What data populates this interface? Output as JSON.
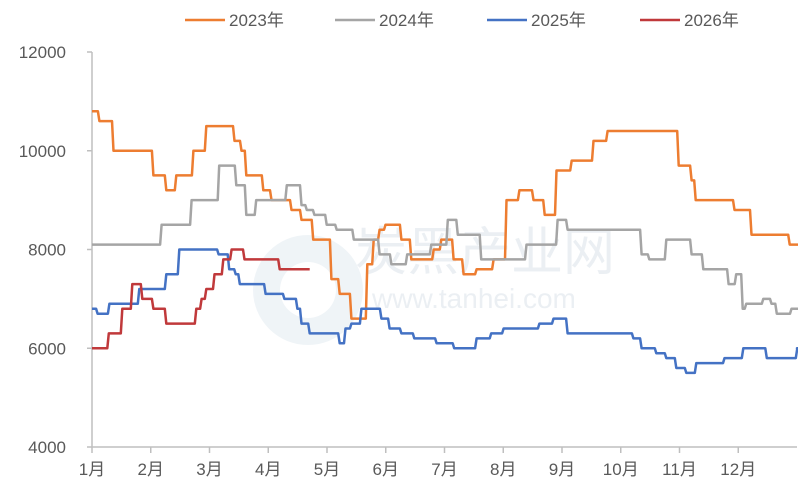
{
  "chart_data": {
    "type": "line",
    "title": "",
    "xlabel": "",
    "ylabel": "",
    "ylim": [
      4000,
      12000
    ],
    "yticks": [
      "4000",
      "6000",
      "8000",
      "10000",
      "12000"
    ],
    "xlim": [
      0,
      12
    ],
    "categories": [
      "1月",
      "2月",
      "3月",
      "4月",
      "5月",
      "6月",
      "7月",
      "8月",
      "9月",
      "10月",
      "11月",
      "12月"
    ],
    "legend_position": "top",
    "grid": false,
    "step": true,
    "x_unit": "months since Jan 1 (value holds until next point)",
    "series": [
      {
        "name": "2023年",
        "color": "#ED7D31",
        "points": [
          [
            0,
            10800
          ],
          [
            0.1,
            10600
          ],
          [
            0.34,
            10000
          ],
          [
            1.02,
            9500
          ],
          [
            1.24,
            9200
          ],
          [
            1.41,
            9500
          ],
          [
            1.7,
            10000
          ],
          [
            1.92,
            10500
          ],
          [
            2.4,
            10200
          ],
          [
            2.52,
            10000
          ],
          [
            2.6,
            9500
          ],
          [
            2.89,
            9200
          ],
          [
            3.03,
            9000
          ],
          [
            3.37,
            8800
          ],
          [
            3.54,
            8600
          ],
          [
            3.74,
            8200
          ],
          [
            4.05,
            7400
          ],
          [
            4.19,
            7100
          ],
          [
            4.39,
            6600
          ],
          [
            4.66,
            7700
          ],
          [
            4.77,
            8200
          ],
          [
            4.87,
            8400
          ],
          [
            4.97,
            8500
          ],
          [
            5.24,
            8200
          ],
          [
            5.41,
            7800
          ],
          [
            5.79,
            8000
          ],
          [
            5.92,
            8200
          ],
          [
            6.13,
            7800
          ],
          [
            6.3,
            7500
          ],
          [
            6.52,
            7600
          ],
          [
            6.81,
            7800
          ],
          [
            7.03,
            9000
          ],
          [
            7.25,
            9200
          ],
          [
            7.49,
            9000
          ],
          [
            7.68,
            8700
          ],
          [
            7.88,
            9600
          ],
          [
            8.14,
            9800
          ],
          [
            8.51,
            10200
          ],
          [
            8.75,
            10400
          ],
          [
            9.96,
            9700
          ],
          [
            10.18,
            9400
          ],
          [
            10.25,
            9000
          ],
          [
            10.91,
            8800
          ],
          [
            11.2,
            8300
          ],
          [
            11.85,
            8100
          ],
          [
            12,
            8100
          ]
        ]
      },
      {
        "name": "2024年",
        "color": "#A5A5A5",
        "points": [
          [
            0,
            8100
          ],
          [
            1.16,
            8500
          ],
          [
            1.67,
            9000
          ],
          [
            2.14,
            9700
          ],
          [
            2.43,
            9300
          ],
          [
            2.6,
            8700
          ],
          [
            2.77,
            9000
          ],
          [
            3.29,
            9300
          ],
          [
            3.54,
            8900
          ],
          [
            3.63,
            8800
          ],
          [
            3.76,
            8700
          ],
          [
            3.97,
            8500
          ],
          [
            4.14,
            8400
          ],
          [
            4.43,
            8200
          ],
          [
            4.87,
            7900
          ],
          [
            5.07,
            7700
          ],
          [
            5.34,
            7900
          ],
          [
            5.75,
            8100
          ],
          [
            6.03,
            8600
          ],
          [
            6.2,
            8300
          ],
          [
            6.6,
            7800
          ],
          [
            7.37,
            8100
          ],
          [
            7.9,
            8600
          ],
          [
            8.07,
            8400
          ],
          [
            9.33,
            7900
          ],
          [
            9.46,
            7800
          ],
          [
            9.75,
            8200
          ],
          [
            10.18,
            7900
          ],
          [
            10.38,
            7600
          ],
          [
            10.81,
            7300
          ],
          [
            10.94,
            7500
          ],
          [
            11.05,
            6800
          ],
          [
            11.11,
            6900
          ],
          [
            11.4,
            7000
          ],
          [
            11.54,
            6900
          ],
          [
            11.63,
            6700
          ],
          [
            11.88,
            6800
          ],
          [
            12,
            6800
          ]
        ]
      },
      {
        "name": "2025年",
        "color": "#4472C4",
        "points": [
          [
            0,
            6800
          ],
          [
            0.07,
            6700
          ],
          [
            0.27,
            6900
          ],
          [
            0.78,
            7200
          ],
          [
            1.24,
            7500
          ],
          [
            1.46,
            8000
          ],
          [
            2.13,
            7900
          ],
          [
            2.31,
            7600
          ],
          [
            2.42,
            7500
          ],
          [
            2.49,
            7300
          ],
          [
            2.93,
            7100
          ],
          [
            3.25,
            7000
          ],
          [
            3.47,
            6800
          ],
          [
            3.54,
            6500
          ],
          [
            3.68,
            6300
          ],
          [
            4.19,
            6100
          ],
          [
            4.29,
            6400
          ],
          [
            4.39,
            6500
          ],
          [
            4.56,
            6800
          ],
          [
            4.9,
            6600
          ],
          [
            5.04,
            6400
          ],
          [
            5.24,
            6300
          ],
          [
            5.46,
            6200
          ],
          [
            5.84,
            6100
          ],
          [
            6.14,
            6000
          ],
          [
            6.52,
            6200
          ],
          [
            6.77,
            6300
          ],
          [
            6.98,
            6400
          ],
          [
            7.59,
            6500
          ],
          [
            7.83,
            6600
          ],
          [
            8.07,
            6300
          ],
          [
            9.19,
            6200
          ],
          [
            9.33,
            6000
          ],
          [
            9.58,
            5900
          ],
          [
            9.75,
            5800
          ],
          [
            9.92,
            5600
          ],
          [
            10.09,
            5500
          ],
          [
            10.26,
            5700
          ],
          [
            10.74,
            5800
          ],
          [
            11.06,
            6000
          ],
          [
            11.46,
            5800
          ],
          [
            11.98,
            6000
          ],
          [
            12,
            6000
          ]
        ]
      },
      {
        "name": "2026年",
        "color": "#C0393B",
        "points": [
          [
            0,
            6000
          ],
          [
            0.26,
            6300
          ],
          [
            0.49,
            6800
          ],
          [
            0.66,
            7300
          ],
          [
            0.83,
            7000
          ],
          [
            1.02,
            6800
          ],
          [
            1.24,
            6500
          ],
          [
            1.75,
            6800
          ],
          [
            1.84,
            7000
          ],
          [
            1.92,
            7200
          ],
          [
            2.06,
            7500
          ],
          [
            2.21,
            7800
          ],
          [
            2.35,
            8000
          ],
          [
            2.57,
            7800
          ],
          [
            3.17,
            7600
          ],
          [
            3.68,
            7600
          ]
        ]
      }
    ]
  },
  "watermark": {
    "name": "炭黑产业网",
    "url": "www.tanhei.com"
  }
}
